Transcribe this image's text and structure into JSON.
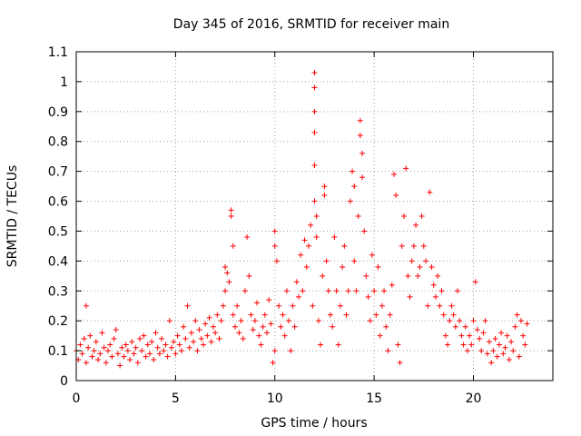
{
  "chart_data": {
    "type": "scatter",
    "title": "Day 345 of 2016, SRMTID for receiver main",
    "xlabel": "GPS time / hours",
    "ylabel": "SRMTID / TECUs",
    "xlim": [
      0,
      24
    ],
    "ylim": [
      0,
      1.1
    ],
    "xticks": [
      0,
      5,
      10,
      15,
      20
    ],
    "xtick_labels": [
      "0",
      "5",
      "10",
      "15",
      "20"
    ],
    "yticks": [
      0,
      0.1,
      0.2,
      0.3,
      0.4,
      0.5,
      0.6,
      0.7,
      0.8,
      0.9,
      1,
      1.1
    ],
    "ytick_labels": [
      "0",
      "0.1",
      "0.2",
      "0.3",
      "0.4",
      "0.5",
      "0.6",
      "0.7",
      "0.8",
      "0.9",
      "1",
      "1.1"
    ],
    "grid": true,
    "marker": "+",
    "color": "#ff0000",
    "series": [
      {
        "name": "SRMTID",
        "points": [
          [
            0.0,
            0.1
          ],
          [
            0.1,
            0.07
          ],
          [
            0.2,
            0.12
          ],
          [
            0.3,
            0.09
          ],
          [
            0.4,
            0.14
          ],
          [
            0.5,
            0.25
          ],
          [
            0.5,
            0.06
          ],
          [
            0.6,
            0.11
          ],
          [
            0.7,
            0.15
          ],
          [
            0.8,
            0.08
          ],
          [
            0.9,
            0.1
          ],
          [
            1.0,
            0.13
          ],
          [
            1.1,
            0.07
          ],
          [
            1.2,
            0.09
          ],
          [
            1.3,
            0.16
          ],
          [
            1.4,
            0.11
          ],
          [
            1.5,
            0.06
          ],
          [
            1.6,
            0.1
          ],
          [
            1.7,
            0.12
          ],
          [
            1.8,
            0.08
          ],
          [
            1.9,
            0.14
          ],
          [
            2.0,
            0.17
          ],
          [
            2.1,
            0.09
          ],
          [
            2.2,
            0.05
          ],
          [
            2.3,
            0.11
          ],
          [
            2.4,
            0.08
          ],
          [
            2.5,
            0.12
          ],
          [
            2.6,
            0.1
          ],
          [
            2.7,
            0.07
          ],
          [
            2.8,
            0.13
          ],
          [
            2.9,
            0.09
          ],
          [
            3.0,
            0.11
          ],
          [
            3.1,
            0.06
          ],
          [
            3.2,
            0.14
          ],
          [
            3.3,
            0.1
          ],
          [
            3.4,
            0.15
          ],
          [
            3.5,
            0.08
          ],
          [
            3.6,
            0.12
          ],
          [
            3.7,
            0.09
          ],
          [
            3.8,
            0.13
          ],
          [
            3.9,
            0.07
          ],
          [
            4.0,
            0.16
          ],
          [
            4.1,
            0.11
          ],
          [
            4.2,
            0.09
          ],
          [
            4.3,
            0.14
          ],
          [
            4.4,
            0.1
          ],
          [
            4.5,
            0.12
          ],
          [
            4.6,
            0.08
          ],
          [
            4.7,
            0.2
          ],
          [
            4.8,
            0.11
          ],
          [
            4.9,
            0.13
          ],
          [
            5.0,
            0.09
          ],
          [
            5.1,
            0.15
          ],
          [
            5.2,
            0.12
          ],
          [
            5.3,
            0.1
          ],
          [
            5.4,
            0.18
          ],
          [
            5.5,
            0.14
          ],
          [
            5.6,
            0.25
          ],
          [
            5.7,
            0.11
          ],
          [
            5.8,
            0.16
          ],
          [
            5.9,
            0.13
          ],
          [
            6.0,
            0.2
          ],
          [
            6.1,
            0.1
          ],
          [
            6.2,
            0.17
          ],
          [
            6.3,
            0.14
          ],
          [
            6.4,
            0.12
          ],
          [
            6.5,
            0.19
          ],
          [
            6.6,
            0.15
          ],
          [
            6.7,
            0.21
          ],
          [
            6.8,
            0.13
          ],
          [
            6.9,
            0.18
          ],
          [
            7.0,
            0.16
          ],
          [
            7.1,
            0.22
          ],
          [
            7.2,
            0.14
          ],
          [
            7.3,
            0.2
          ],
          [
            7.4,
            0.25
          ],
          [
            7.5,
            0.38
          ],
          [
            7.5,
            0.3
          ],
          [
            7.6,
            0.36
          ],
          [
            7.7,
            0.33
          ],
          [
            7.8,
            0.57
          ],
          [
            7.8,
            0.55
          ],
          [
            7.9,
            0.45
          ],
          [
            7.9,
            0.22
          ],
          [
            8.0,
            0.18
          ],
          [
            8.1,
            0.25
          ],
          [
            8.2,
            0.16
          ],
          [
            8.3,
            0.2
          ],
          [
            8.4,
            0.14
          ],
          [
            8.5,
            0.3
          ],
          [
            8.6,
            0.48
          ],
          [
            8.7,
            0.35
          ],
          [
            8.8,
            0.22
          ],
          [
            8.9,
            0.17
          ],
          [
            9.0,
            0.2
          ],
          [
            9.1,
            0.26
          ],
          [
            9.2,
            0.15
          ],
          [
            9.3,
            0.12
          ],
          [
            9.4,
            0.18
          ],
          [
            9.5,
            0.22
          ],
          [
            9.6,
            0.16
          ],
          [
            9.7,
            0.27
          ],
          [
            9.8,
            0.19
          ],
          [
            9.9,
            0.06
          ],
          [
            10.0,
            0.1
          ],
          [
            10.0,
            0.5
          ],
          [
            10.0,
            0.45
          ],
          [
            10.1,
            0.4
          ],
          [
            10.2,
            0.25
          ],
          [
            10.3,
            0.18
          ],
          [
            10.4,
            0.22
          ],
          [
            10.5,
            0.15
          ],
          [
            10.6,
            0.3
          ],
          [
            10.7,
            0.2
          ],
          [
            10.8,
            0.1
          ],
          [
            10.9,
            0.25
          ],
          [
            11.0,
            0.18
          ],
          [
            11.1,
            0.33
          ],
          [
            11.2,
            0.28
          ],
          [
            11.3,
            0.42
          ],
          [
            11.4,
            0.3
          ],
          [
            11.5,
            0.47
          ],
          [
            11.6,
            0.38
          ],
          [
            11.7,
            0.45
          ],
          [
            11.8,
            0.52
          ],
          [
            11.9,
            0.25
          ],
          [
            12.0,
            1.03
          ],
          [
            12.0,
            0.98
          ],
          [
            12.0,
            0.9
          ],
          [
            12.0,
            0.83
          ],
          [
            12.0,
            0.72
          ],
          [
            12.0,
            0.6
          ],
          [
            12.1,
            0.55
          ],
          [
            12.1,
            0.48
          ],
          [
            12.2,
            0.2
          ],
          [
            12.3,
            0.12
          ],
          [
            12.4,
            0.35
          ],
          [
            12.5,
            0.62
          ],
          [
            12.5,
            0.65
          ],
          [
            12.6,
            0.4
          ],
          [
            12.7,
            0.3
          ],
          [
            12.8,
            0.22
          ],
          [
            12.9,
            0.18
          ],
          [
            13.0,
            0.48
          ],
          [
            13.1,
            0.3
          ],
          [
            13.2,
            0.12
          ],
          [
            13.3,
            0.25
          ],
          [
            13.4,
            0.38
          ],
          [
            13.5,
            0.45
          ],
          [
            13.6,
            0.22
          ],
          [
            13.7,
            0.3
          ],
          [
            13.8,
            0.6
          ],
          [
            13.9,
            0.7
          ],
          [
            14.0,
            0.65
          ],
          [
            14.0,
            0.4
          ],
          [
            14.1,
            0.3
          ],
          [
            14.2,
            0.55
          ],
          [
            14.3,
            0.87
          ],
          [
            14.3,
            0.82
          ],
          [
            14.4,
            0.76
          ],
          [
            14.4,
            0.68
          ],
          [
            14.5,
            0.5
          ],
          [
            14.6,
            0.35
          ],
          [
            14.7,
            0.28
          ],
          [
            14.8,
            0.2
          ],
          [
            14.9,
            0.42
          ],
          [
            15.0,
            0.3
          ],
          [
            15.1,
            0.22
          ],
          [
            15.2,
            0.38
          ],
          [
            15.3,
            0.15
          ],
          [
            15.4,
            0.25
          ],
          [
            15.5,
            0.3
          ],
          [
            15.6,
            0.18
          ],
          [
            15.7,
            0.1
          ],
          [
            15.8,
            0.22
          ],
          [
            15.9,
            0.32
          ],
          [
            16.0,
            0.69
          ],
          [
            16.1,
            0.62
          ],
          [
            16.2,
            0.12
          ],
          [
            16.3,
            0.06
          ],
          [
            16.4,
            0.45
          ],
          [
            16.5,
            0.55
          ],
          [
            16.6,
            0.71
          ],
          [
            16.7,
            0.35
          ],
          [
            16.8,
            0.28
          ],
          [
            16.9,
            0.4
          ],
          [
            17.0,
            0.45
          ],
          [
            17.1,
            0.52
          ],
          [
            17.2,
            0.35
          ],
          [
            17.3,
            0.38
          ],
          [
            17.4,
            0.55
          ],
          [
            17.5,
            0.45
          ],
          [
            17.6,
            0.4
          ],
          [
            17.7,
            0.25
          ],
          [
            17.8,
            0.63
          ],
          [
            17.9,
            0.38
          ],
          [
            18.0,
            0.32
          ],
          [
            18.1,
            0.28
          ],
          [
            18.2,
            0.35
          ],
          [
            18.3,
            0.25
          ],
          [
            18.4,
            0.3
          ],
          [
            18.5,
            0.22
          ],
          [
            18.6,
            0.15
          ],
          [
            18.7,
            0.12
          ],
          [
            18.8,
            0.2
          ],
          [
            18.9,
            0.25
          ],
          [
            19.0,
            0.22
          ],
          [
            19.1,
            0.18
          ],
          [
            19.2,
            0.3
          ],
          [
            19.3,
            0.2
          ],
          [
            19.4,
            0.15
          ],
          [
            19.5,
            0.12
          ],
          [
            19.6,
            0.18
          ],
          [
            19.7,
            0.1
          ],
          [
            19.8,
            0.15
          ],
          [
            19.9,
            0.12
          ],
          [
            20.0,
            0.2
          ],
          [
            20.1,
            0.33
          ],
          [
            20.2,
            0.17
          ],
          [
            20.3,
            0.14
          ],
          [
            20.4,
            0.1
          ],
          [
            20.5,
            0.16
          ],
          [
            20.6,
            0.2
          ],
          [
            20.7,
            0.09
          ],
          [
            20.8,
            0.13
          ],
          [
            20.9,
            0.06
          ],
          [
            21.0,
            0.1
          ],
          [
            21.1,
            0.14
          ],
          [
            21.2,
            0.08
          ],
          [
            21.3,
            0.12
          ],
          [
            21.4,
            0.16
          ],
          [
            21.5,
            0.09
          ],
          [
            21.6,
            0.11
          ],
          [
            21.7,
            0.15
          ],
          [
            21.8,
            0.07
          ],
          [
            21.9,
            0.13
          ],
          [
            22.0,
            0.1
          ],
          [
            22.1,
            0.18
          ],
          [
            22.2,
            0.22
          ],
          [
            22.3,
            0.08
          ],
          [
            22.4,
            0.2
          ],
          [
            22.5,
            0.15
          ],
          [
            22.6,
            0.12
          ],
          [
            22.7,
            0.19
          ]
        ]
      }
    ]
  }
}
